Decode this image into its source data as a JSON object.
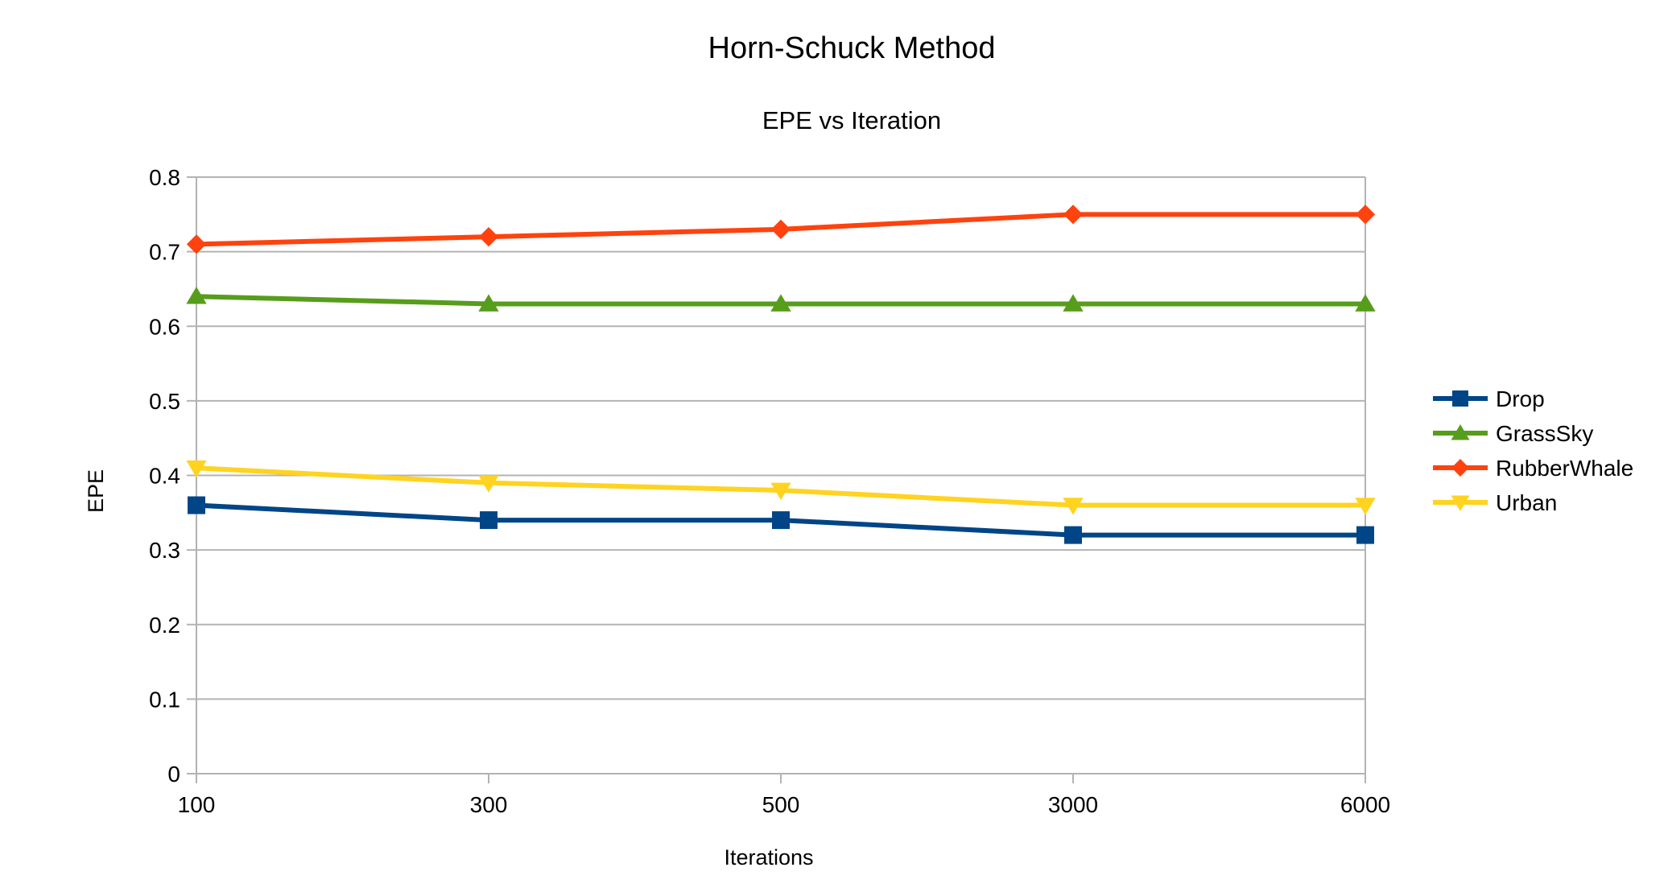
{
  "chart_data": {
    "type": "line",
    "title": "Horn-Schuck Method",
    "subtitle": "EPE vs Iteration",
    "xlabel": "Iterations",
    "ylabel": "EPE",
    "categories": [
      "100",
      "300",
      "500",
      "3000",
      "6000"
    ],
    "ylim": [
      0,
      0.8
    ],
    "yticks": [
      "0",
      "0.1",
      "0.2",
      "0.3",
      "0.4",
      "0.5",
      "0.6",
      "0.7",
      "0.8"
    ],
    "grid": true,
    "legend_position": "right",
    "series": [
      {
        "name": "Drop",
        "values": [
          0.36,
          0.34,
          0.34,
          0.32,
          0.32
        ],
        "color": "#004586",
        "marker": "square"
      },
      {
        "name": "GrassSky",
        "values": [
          0.64,
          0.63,
          0.63,
          0.63,
          0.63
        ],
        "color": "#579d1c",
        "marker": "triangle-up"
      },
      {
        "name": "RubberWhale",
        "values": [
          0.71,
          0.72,
          0.73,
          0.75,
          0.75
        ],
        "color": "#ff420e",
        "marker": "diamond"
      },
      {
        "name": "Urban",
        "values": [
          0.41,
          0.39,
          0.38,
          0.36,
          0.36
        ],
        "color": "#ffd320",
        "marker": "triangle-down"
      }
    ]
  }
}
